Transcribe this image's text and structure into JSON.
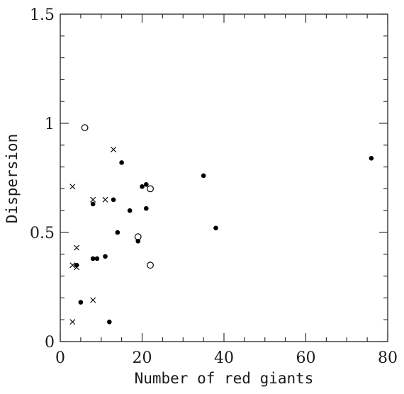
{
  "chart_data": {
    "type": "scatter",
    "title": "",
    "xlabel": "Number of red giants",
    "ylabel": "Dispersion",
    "xlim": [
      0,
      80
    ],
    "ylim": [
      0,
      1.5
    ],
    "x_ticks": [
      "0",
      "20",
      "40",
      "60",
      "80"
    ],
    "y_ticks": [
      "0",
      "0.5",
      "1",
      "1.5"
    ],
    "grid": false,
    "legend": "none",
    "series": [
      {
        "marker": "filled-circle",
        "color": "#000000",
        "points": [
          {
            "x": 4,
            "y": 0.35
          },
          {
            "x": 5,
            "y": 0.18
          },
          {
            "x": 8,
            "y": 0.63
          },
          {
            "x": 8,
            "y": 0.38
          },
          {
            "x": 9,
            "y": 0.38
          },
          {
            "x": 11,
            "y": 0.39
          },
          {
            "x": 12,
            "y": 0.09
          },
          {
            "x": 13,
            "y": 0.65
          },
          {
            "x": 14,
            "y": 0.5
          },
          {
            "x": 15,
            "y": 0.82
          },
          {
            "x": 17,
            "y": 0.6
          },
          {
            "x": 19,
            "y": 0.46
          },
          {
            "x": 20,
            "y": 0.71
          },
          {
            "x": 21,
            "y": 0.72
          },
          {
            "x": 21,
            "y": 0.61
          },
          {
            "x": 35,
            "y": 0.76
          },
          {
            "x": 38,
            "y": 0.52
          },
          {
            "x": 76,
            "y": 0.84
          }
        ]
      },
      {
        "marker": "open-circle",
        "color": "#000000",
        "points": [
          {
            "x": 6,
            "y": 0.98
          },
          {
            "x": 19,
            "y": 0.48
          },
          {
            "x": 22,
            "y": 0.7
          },
          {
            "x": 22,
            "y": 0.35
          }
        ]
      },
      {
        "marker": "cross",
        "color": "#000000",
        "points": [
          {
            "x": 3,
            "y": 0.71
          },
          {
            "x": 3,
            "y": 0.35
          },
          {
            "x": 3,
            "y": 0.09
          },
          {
            "x": 4,
            "y": 0.43
          },
          {
            "x": 4,
            "y": 0.34
          },
          {
            "x": 8,
            "y": 0.65
          },
          {
            "x": 8,
            "y": 0.19
          },
          {
            "x": 11,
            "y": 0.65
          },
          {
            "x": 13,
            "y": 0.88
          }
        ]
      }
    ]
  }
}
